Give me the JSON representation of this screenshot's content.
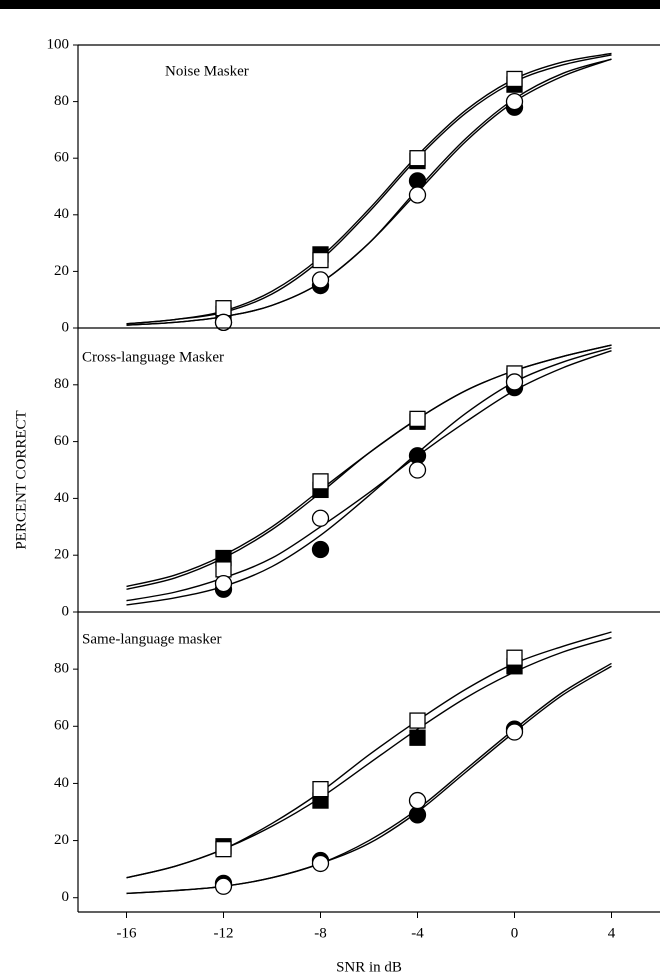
{
  "chart_data": [
    {
      "type": "scatter",
      "title": "Noise Masker",
      "x": [
        -12,
        -8,
        -4,
        0
      ],
      "xlim": [
        -18,
        6
      ],
      "ylim": [
        0,
        100
      ],
      "yticks": [
        0,
        20,
        40,
        60,
        80,
        100
      ],
      "series": [
        {
          "marker": "square",
          "filled": true,
          "color": "#000000",
          "values": [
            5,
            26,
            59,
            86
          ]
        },
        {
          "marker": "square",
          "filled": false,
          "color": "#000000",
          "values": [
            7,
            24,
            60,
            88
          ]
        },
        {
          "marker": "circle",
          "filled": true,
          "color": "#000000",
          "values": [
            2,
            15,
            52,
            78
          ]
        },
        {
          "marker": "circle",
          "filled": false,
          "color": "#000000",
          "values": [
            2,
            17,
            47,
            80
          ]
        }
      ],
      "fit_x": [
        -16,
        -14,
        -12,
        -10,
        -8,
        -6,
        -4,
        -2,
        0,
        2,
        4
      ],
      "fits": [
        {
          "values": [
            1.5,
            3,
            6,
            13,
            25,
            42,
            61,
            77,
            88,
            94,
            97
          ]
        },
        {
          "values": [
            1.5,
            3,
            5.5,
            12,
            24,
            41,
            60,
            76,
            87,
            93,
            96.5
          ]
        },
        {
          "values": [
            1,
            2,
            4,
            8,
            16,
            30,
            49,
            67,
            81,
            90,
            95
          ]
        },
        {
          "values": [
            1,
            2,
            4,
            8,
            16,
            30,
            48,
            66,
            80,
            89,
            95
          ]
        }
      ]
    },
    {
      "type": "scatter",
      "title": "Cross-language Masker",
      "ylabel": "PERCENT  CORRECT",
      "x": [
        -12,
        -8,
        -4,
        0
      ],
      "xlim": [
        -18,
        6
      ],
      "ylim": [
        0,
        100
      ],
      "yticks": [
        0,
        20,
        40,
        60,
        80
      ],
      "series": [
        {
          "marker": "square",
          "filled": true,
          "color": "#000000",
          "values": [
            19,
            43,
            67,
            83
          ]
        },
        {
          "marker": "square",
          "filled": false,
          "color": "#000000",
          "values": [
            15,
            46,
            68,
            84
          ]
        },
        {
          "marker": "circle",
          "filled": true,
          "color": "#000000",
          "values": [
            8,
            22,
            55,
            79
          ]
        },
        {
          "marker": "circle",
          "filled": false,
          "color": "#000000",
          "values": [
            10,
            33,
            50,
            81
          ]
        }
      ],
      "fit_x": [
        -16,
        -14,
        -12,
        -10,
        -8,
        -6,
        -4,
        -2,
        0,
        2,
        4
      ],
      "fits": [
        {
          "values": [
            8,
            12,
            19,
            29,
            42,
            56,
            68,
            78,
            85,
            90,
            94
          ]
        },
        {
          "values": [
            9,
            13,
            20,
            30,
            43,
            56,
            68,
            78,
            85,
            90,
            94
          ]
        },
        {
          "values": [
            2.5,
            5,
            9,
            16,
            27,
            41,
            56,
            70,
            81,
            88,
            93
          ]
        },
        {
          "values": [
            4,
            7,
            12,
            19,
            30,
            42,
            55,
            67,
            78,
            86,
            92
          ]
        }
      ]
    },
    {
      "type": "scatter",
      "title": "Same-language masker",
      "xlabel": "SNR in dB",
      "x": [
        -12,
        -8,
        -4,
        0
      ],
      "xlim": [
        -18,
        6
      ],
      "xticks": [
        -16,
        -12,
        -8,
        -4,
        0,
        4
      ],
      "ylim": [
        -5,
        100
      ],
      "yticks": [
        0,
        20,
        40,
        60,
        80
      ],
      "series": [
        {
          "marker": "square",
          "filled": true,
          "color": "#000000",
          "values": [
            18,
            34,
            56,
            81
          ]
        },
        {
          "marker": "square",
          "filled": false,
          "color": "#000000",
          "values": [
            17,
            38,
            62,
            84
          ]
        },
        {
          "marker": "circle",
          "filled": true,
          "color": "#000000",
          "values": [
            5,
            13,
            29,
            59
          ]
        },
        {
          "marker": "circle",
          "filled": false,
          "color": "#000000",
          "values": [
            4,
            12,
            34,
            58
          ]
        }
      ],
      "fit_x": [
        -16,
        -14,
        -12,
        -10,
        -8,
        -6,
        -4,
        -2,
        0,
        2,
        4
      ],
      "fits": [
        {
          "values": [
            7,
            11,
            17,
            26,
            37,
            50,
            62,
            73,
            82,
            88,
            93
          ]
        },
        {
          "values": [
            7,
            11,
            17,
            25,
            35,
            47,
            59,
            70,
            79,
            86,
            91
          ]
        },
        {
          "values": [
            1.5,
            2.5,
            4,
            7,
            12,
            20,
            31,
            45,
            59,
            72,
            82
          ]
        },
        {
          "values": [
            1.5,
            2.5,
            4,
            7,
            12,
            19,
            30,
            44,
            58,
            71,
            81
          ]
        }
      ]
    }
  ]
}
